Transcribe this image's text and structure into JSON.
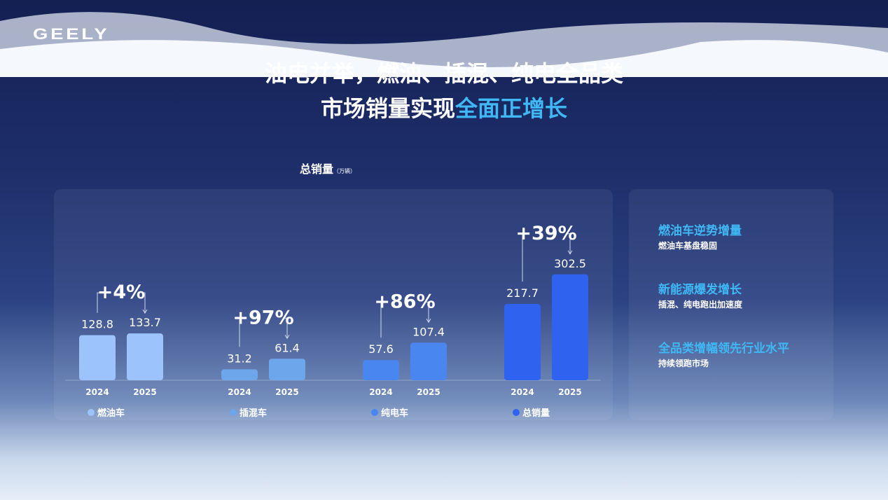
{
  "brand": "GEELY",
  "title_line1": "油电并举，燃油、插混、纯电全品类",
  "title_line2_prefix": "市场销量实现",
  "title_line2_highlight": "全面正增长",
  "chart_data": {
    "type": "bar",
    "title": "总销量",
    "unit": "（万辆）",
    "groups": [
      {
        "name": "燃油车",
        "color": "#9cc3fb",
        "change": "+4%",
        "x": [
          "2024",
          "2025"
        ],
        "values": [
          128.8,
          133.7
        ]
      },
      {
        "name": "插混车",
        "color": "#6ea6ec",
        "change": "+97%",
        "x": [
          "2024",
          "2025"
        ],
        "values": [
          31.2,
          61.4
        ]
      },
      {
        "name": "纯电车",
        "color": "#4a86f0",
        "change": "+86%",
        "x": [
          "2024",
          "2025"
        ],
        "values": [
          57.6,
          107.4
        ]
      },
      {
        "name": "总销量",
        "color": "#2f63ef",
        "change": "+39%",
        "x": [
          "2024",
          "2025"
        ],
        "values": [
          217.7,
          302.5
        ]
      }
    ]
  },
  "highlights": [
    {
      "title": "燃油车逆势增量",
      "text": "燃油车基盘稳固"
    },
    {
      "title": "新能源爆发增长",
      "text": "插混、纯电跑出加速度"
    },
    {
      "title": "全品类增幅领先行业水平",
      "text": "持续领跑市场"
    }
  ]
}
